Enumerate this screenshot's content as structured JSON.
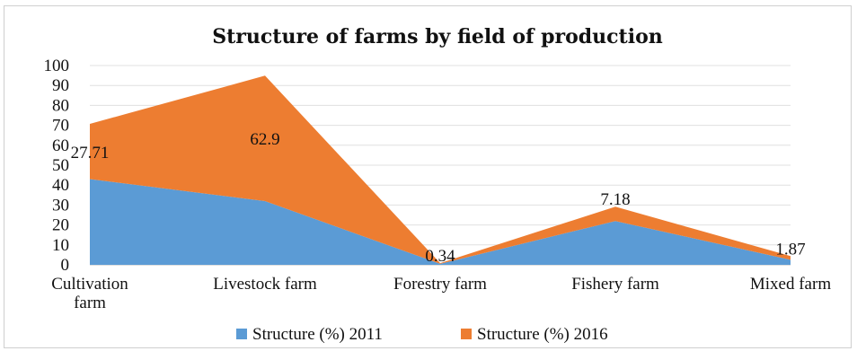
{
  "chart_data": {
    "type": "area",
    "title": "Structure of farms by field of production",
    "xlabel": "",
    "ylabel": "",
    "ylim": [
      0,
      100
    ],
    "yticks": [
      0,
      10,
      20,
      30,
      40,
      50,
      60,
      70,
      80,
      90,
      100
    ],
    "grid": true,
    "stacked": true,
    "legend_position": "bottom",
    "categories": [
      [
        "Cultivation",
        "farm"
      ],
      [
        "Livestock farm"
      ],
      [
        "Forestry farm"
      ],
      [
        "Fishery farm"
      ],
      [
        "Mixed farm"
      ]
    ],
    "series": [
      {
        "name": "Structure (%) 2011",
        "color": "#5b9bd5",
        "values": [
          43,
          32,
          0.5,
          22,
          2.5
        ]
      },
      {
        "name": "Structure (%) 2016",
        "color": "#ed7d31",
        "values": [
          27.71,
          62.9,
          0.34,
          7.18,
          1.87
        ]
      }
    ],
    "data_labels": [
      "27.71",
      "62.9",
      "0.34",
      "7.18",
      "1.87"
    ]
  }
}
